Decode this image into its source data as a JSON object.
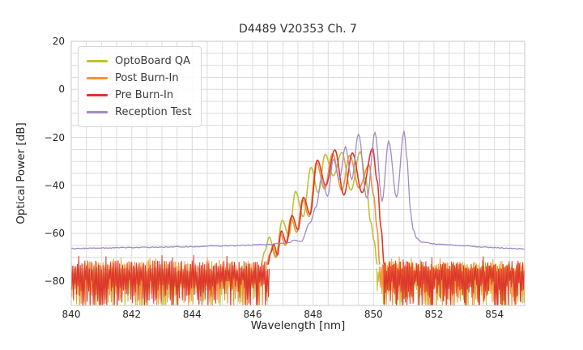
{
  "chart_data": {
    "type": "line",
    "title": "D4489 V20353 Ch. 7",
    "xlabel": "Wavelength [nm]",
    "ylabel": "Optical Power [dB]",
    "xlim": [
      840,
      855
    ],
    "ylim": [
      -90,
      20
    ],
    "xticks": [
      840,
      842,
      844,
      846,
      848,
      850,
      852,
      854
    ],
    "yticks": [
      20,
      0,
      -20,
      -40,
      -60,
      -80
    ],
    "minor_x_step": 0.5,
    "minor_y_step": 5,
    "grid": true,
    "grid_color": "#dcdcdc",
    "frame_color": "#c9c9c9",
    "background_color": "#ffffff",
    "text_color": "#262626",
    "legend_position": "upper left",
    "series": [
      {
        "name": "OptoBoard QA",
        "color": "#bfc234",
        "line_width": 1.6,
        "sample_step": 0.02,
        "jitter": 0,
        "curve": [
          [
            846.28,
            -73
          ],
          [
            846.4,
            -67.5
          ],
          [
            846.55,
            -61.5
          ],
          [
            846.76,
            -70
          ],
          [
            846.98,
            -54.5
          ],
          [
            847.2,
            -61
          ],
          [
            847.42,
            -42.5
          ],
          [
            847.67,
            -53
          ],
          [
            847.93,
            -32.5
          ],
          [
            848.17,
            -43
          ],
          [
            848.4,
            -27
          ],
          [
            848.67,
            -36
          ],
          [
            848.95,
            -26.3
          ],
          [
            849.25,
            -42
          ],
          [
            849.56,
            -26
          ],
          [
            849.75,
            -38
          ],
          [
            849.9,
            -55
          ],
          [
            850.02,
            -63
          ],
          [
            850.12,
            -73
          ]
        ],
        "noise": {
          "segments": [
            [
              840,
              846.3
            ],
            [
              850.1,
              855
            ]
          ],
          "top": -74,
          "top_var": 4,
          "bottom": -80,
          "bottom_var": 12,
          "step": 0.025,
          "seed": 101
        }
      },
      {
        "name": "Post Burn-In",
        "color": "#f79335",
        "line_width": 1.6,
        "sample_step": 0.02,
        "jitter": 0,
        "curve": [
          [
            846.46,
            -73
          ],
          [
            846.56,
            -69
          ],
          [
            846.66,
            -65.5
          ],
          [
            846.78,
            -70
          ],
          [
            846.92,
            -60
          ],
          [
            847.08,
            -65
          ],
          [
            847.27,
            -53.5
          ],
          [
            847.46,
            -59.5
          ],
          [
            847.65,
            -46
          ],
          [
            847.87,
            -53
          ],
          [
            848.11,
            -30.5
          ],
          [
            848.38,
            -41.5
          ],
          [
            848.64,
            -26.8
          ],
          [
            848.95,
            -42
          ],
          [
            849.21,
            -27.5
          ],
          [
            849.52,
            -41
          ],
          [
            849.85,
            -31.5
          ],
          [
            850.0,
            -44
          ],
          [
            850.12,
            -58
          ],
          [
            850.2,
            -73
          ]
        ],
        "noise": {
          "segments": [
            [
              840,
              846.5
            ],
            [
              850.2,
              855
            ]
          ],
          "top": -73.5,
          "top_var": 4,
          "bottom": -80,
          "bottom_var": 12,
          "step": 0.025,
          "seed": 202
        }
      },
      {
        "name": "Pre Burn-In",
        "color": "#dc382c",
        "line_width": 1.6,
        "sample_step": 0.02,
        "jitter": 0,
        "curve": [
          [
            846.5,
            -73
          ],
          [
            846.6,
            -68
          ],
          [
            846.7,
            -64.5
          ],
          [
            846.82,
            -69
          ],
          [
            846.95,
            -59
          ],
          [
            847.12,
            -64
          ],
          [
            847.3,
            -52.5
          ],
          [
            847.5,
            -58.5
          ],
          [
            847.68,
            -45
          ],
          [
            847.9,
            -52
          ],
          [
            848.14,
            -29.5
          ],
          [
            848.42,
            -40
          ],
          [
            848.72,
            -25.2
          ],
          [
            849.02,
            -44
          ],
          [
            849.3,
            -26.5
          ],
          [
            849.62,
            -43
          ],
          [
            849.97,
            -24.6
          ],
          [
            850.12,
            -38
          ],
          [
            850.25,
            -58
          ],
          [
            850.35,
            -73
          ]
        ],
        "noise": {
          "segments": [
            [
              840,
              846.55
            ],
            [
              850.33,
              855
            ]
          ],
          "top": -73.5,
          "top_var": 4.5,
          "bottom": -79,
          "bottom_var": 13,
          "step": 0.025,
          "seed": 303
        }
      },
      {
        "name": "Reception Test",
        "color": "#a18bc7",
        "line_width": 1.3,
        "sample_step": 0.04,
        "jitter": 0.2,
        "curve": [
          [
            840,
            -66.3
          ],
          [
            841,
            -66.1
          ],
          [
            842,
            -65.9
          ],
          [
            843,
            -65.7
          ],
          [
            844,
            -65.5
          ],
          [
            845,
            -65.2
          ],
          [
            845.7,
            -65.0
          ],
          [
            846.3,
            -64.7
          ],
          [
            846.9,
            -64.3
          ],
          [
            847.2,
            -64.0
          ],
          [
            847.38,
            -62.8
          ],
          [
            847.6,
            -63.5
          ],
          [
            847.9,
            -55.5
          ],
          [
            848.1,
            -49
          ],
          [
            848.28,
            -37
          ],
          [
            848.48,
            -44.5
          ],
          [
            848.67,
            -29
          ],
          [
            848.87,
            -37.5
          ],
          [
            849.07,
            -24
          ],
          [
            849.28,
            -37.5
          ],
          [
            849.5,
            -18.5
          ],
          [
            849.78,
            -45.5
          ],
          [
            850.05,
            -18.0
          ],
          [
            850.28,
            -46.5
          ],
          [
            850.5,
            -21.5
          ],
          [
            850.76,
            -45
          ],
          [
            851.01,
            -17.4
          ],
          [
            851.12,
            -30
          ],
          [
            851.2,
            -48
          ],
          [
            851.3,
            -58
          ],
          [
            851.42,
            -62
          ],
          [
            851.6,
            -63.6
          ],
          [
            852.0,
            -64.4
          ],
          [
            852.5,
            -64.8
          ],
          [
            853.0,
            -65.2
          ],
          [
            853.5,
            -65.6
          ],
          [
            854.0,
            -65.9
          ],
          [
            854.5,
            -66.2
          ],
          [
            855.0,
            -66.5
          ]
        ],
        "noise": null
      }
    ]
  }
}
